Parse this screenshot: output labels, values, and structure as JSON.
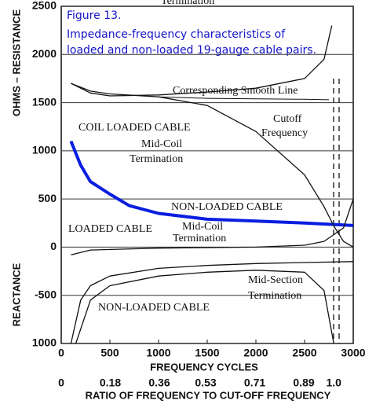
{
  "chart_data": {
    "type": "line",
    "figure_label": "Figure 13.",
    "title_lines": [
      "Impedance-frequency characteristics of",
      "loaded and non-loaded 19-gauge cable pairs."
    ],
    "y_label_top": "OHMS – RESISTANCE",
    "y_label_bottom": "REACTANCE",
    "x_label": "FREQUENCY CYCLES",
    "x2_label": "RATIO OF FREQUENCY TO CUT-OFF FREQUENCY",
    "xlim": [
      0,
      3000
    ],
    "xticks": [
      0,
      500,
      1000,
      1500,
      2000,
      2500,
      3000
    ],
    "x2lim": [
      0,
      1.0714
    ],
    "x2ticks": [
      0,
      0.18,
      0.36,
      0.53,
      0.71,
      0.89,
      {
        "value": 1,
        "label": "1.0"
      }
    ],
    "ylim": [
      -1000,
      2500
    ],
    "yticks": [
      {
        "value": -1000,
        "label": "1000"
      },
      -500,
      0,
      500,
      1000,
      1500,
      2000,
      2500
    ],
    "grid": true,
    "series": [
      {
        "name": "NON-LOADED CABLE",
        "color": "#0a1ee0",
        "width": 4,
        "x": [
          100,
          200,
          300,
          500,
          700,
          1000,
          1500,
          2000,
          2500,
          3000
        ],
        "values": [
          1100,
          850,
          680,
          550,
          430,
          350,
          290,
          270,
          250,
          225
        ]
      },
      {
        "name": "COIL LOADED CABLE",
        "color": "#111111",
        "width": 1.3,
        "x": [
          100,
          300,
          500,
          1000,
          1500,
          2000,
          2500,
          2700,
          2800,
          2900,
          3000
        ],
        "values": [
          1700,
          1620,
          1590,
          1560,
          1470,
          1200,
          750,
          420,
          220,
          60,
          0
        ]
      },
      {
        "color": "#111111",
        "width": 1.3,
        "x": [
          100,
          300,
          500,
          1000,
          1500,
          2000,
          2500,
          2700,
          2780
        ],
        "values": [
          1700,
          1600,
          1570,
          1580,
          1610,
          1650,
          1750,
          1950,
          2300
        ]
      },
      {
        "name": "Corresponding Smooth Line",
        "color": "#111111",
        "width": 1,
        "x": [
          1000,
          1500,
          2000,
          2500,
          2750
        ],
        "values": [
          1560,
          1545,
          1540,
          1535,
          1530
        ]
      },
      {
        "name": "LOADED CABLE",
        "color": "#111111",
        "width": 1.3,
        "x": [
          100,
          300,
          1000,
          2000,
          2500,
          2700,
          2900,
          3000
        ],
        "values": [
          -80,
          -30,
          -10,
          0,
          20,
          60,
          200,
          500
        ]
      },
      {
        "name": "NON-LOADED CABLE",
        "color": "#111111",
        "width": 1.3,
        "x": [
          100,
          200,
          300,
          500,
          1000,
          1500,
          2000,
          2500,
          3000
        ],
        "values": [
          -1000,
          -550,
          -400,
          -300,
          -220,
          -190,
          -170,
          -160,
          -150
        ]
      },
      {
        "color": "#111111",
        "width": 1.3,
        "x": [
          150,
          300,
          500,
          1000,
          1500,
          2000,
          2500,
          2700,
          2800
        ],
        "values": [
          -1000,
          -550,
          -400,
          -300,
          -260,
          -240,
          -260,
          -450,
          -1000
        ]
      }
    ],
    "annotations": [
      "Termination",
      "Mid-Coil",
      "Termination",
      "Cutoff",
      "Frequency",
      "Mid-Coil",
      "Termination",
      "Mid-Section",
      "Termination"
    ]
  }
}
